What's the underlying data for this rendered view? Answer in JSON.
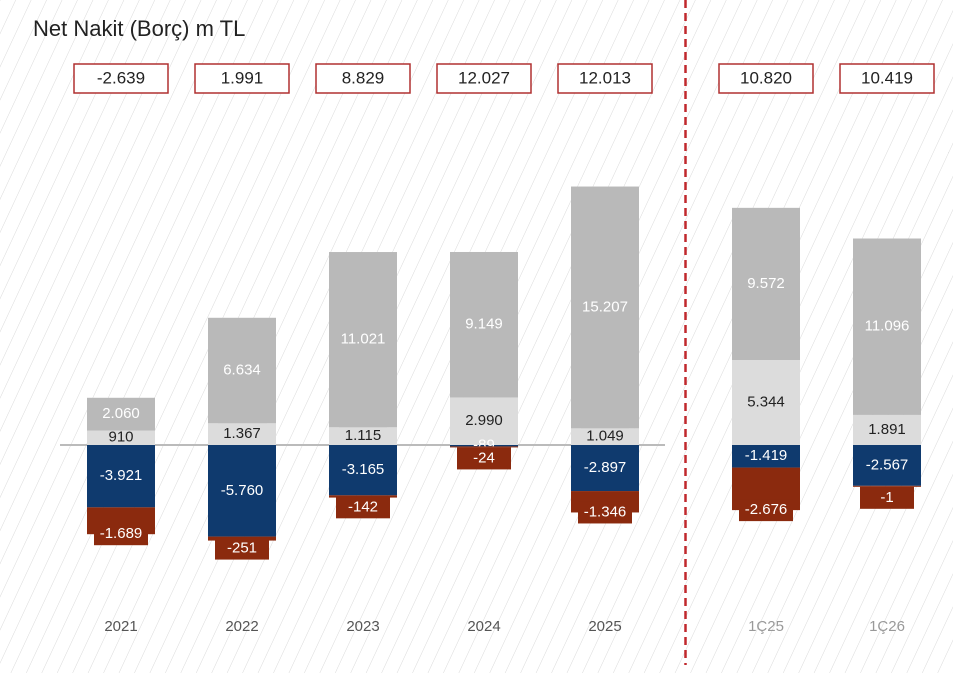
{
  "chart_data": {
    "type": "bar",
    "title": "Net Nakit (Borç) m TL",
    "categories": [
      "2021",
      "2022",
      "2023",
      "2024",
      "2025",
      "1Ç25",
      "1Ç26"
    ],
    "series": [
      {
        "color": "#dcdcdc",
        "values": [
          910,
          1367,
          1115,
          2990,
          1049,
          5344,
          1891
        ],
        "value_labels": [
          "910",
          "1.367",
          "1.115",
          "2.990",
          "1.049",
          "5.344",
          "1.891"
        ]
      },
      {
        "color": "#b9b9b9",
        "values": [
          2060,
          6634,
          11021,
          9149,
          15207,
          9572,
          11096
        ],
        "value_labels": [
          "2.060",
          "6.634",
          "11.021",
          "9.149",
          "15.207",
          "9.572",
          "11.096"
        ]
      },
      {
        "color": "#0f3a6e",
        "values": [
          -3921,
          -5760,
          -3165,
          -89,
          -2897,
          -1419,
          -2567
        ],
        "value_labels": [
          "-3.921",
          "-5.760",
          "-3.165",
          "-89",
          "-2.897",
          "-1.419",
          "-2.567"
        ]
      },
      {
        "color": "#8b2a0e",
        "values": [
          -1689,
          -251,
          -142,
          -24,
          -1346,
          -2676,
          -1
        ],
        "value_labels": [
          "-1.689",
          "-251",
          "-142",
          "-24",
          "-1.346",
          "-2.676",
          "-1"
        ]
      }
    ],
    "totals": [
      -2639,
      1991,
      8829,
      12027,
      12013,
      10820,
      10419
    ],
    "total_labels": [
      "-2.639",
      "1.991",
      "8.829",
      "12.027",
      "12.013",
      "10.820",
      "10.419"
    ],
    "ylim": [
      -10000,
      20000
    ],
    "divider_after_index": 4,
    "divider_color": "#c0282d"
  }
}
